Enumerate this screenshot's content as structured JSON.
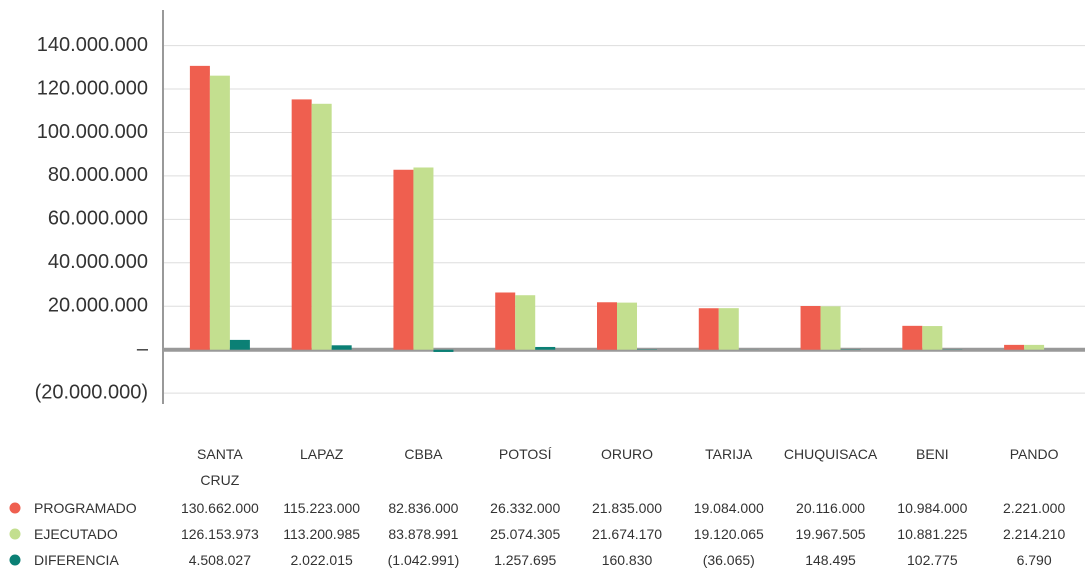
{
  "chart_data": {
    "type": "bar",
    "categories": [
      "SANTA CRUZ",
      "LAPAZ",
      "CBBA",
      "POTOSÍ",
      "ORURO",
      "TARIJA",
      "CHUQUISACA",
      "BENI",
      "PANDO"
    ],
    "series": [
      {
        "name": "PROGRAMADO",
        "color": "#ef5f4f",
        "values": [
          130662000,
          115223000,
          82836000,
          26332000,
          21835000,
          19084000,
          20116000,
          10984000,
          2221000
        ],
        "value_labels": [
          "130.662.000",
          "115.223.000",
          "82.836.000",
          "26.332.000",
          "21.835.000",
          "19.084.000",
          "20.116.000",
          "10.984.000",
          "2.221.000"
        ]
      },
      {
        "name": "EJECUTADO",
        "color": "#c3df8f",
        "values": [
          126153973,
          113200985,
          83878991,
          25074305,
          21674170,
          19120065,
          19967505,
          10881225,
          2214210
        ],
        "value_labels": [
          "126.153.973",
          "113.200.985",
          "83.878.991",
          "25.074.305",
          "21.674.170",
          "19.120.065",
          "19.967.505",
          "10.881.225",
          "2.214.210"
        ]
      },
      {
        "name": "DIFERENCIA",
        "color": "#0b8075",
        "values": [
          4508027,
          2022015,
          -1042991,
          1257695,
          160830,
          -36065,
          148495,
          102775,
          6790
        ],
        "value_labels": [
          "4.508.027",
          "2.022.015",
          "(1.042.991)",
          "1.257.695",
          "160.830",
          "(36.065)",
          "148.495",
          "102.775",
          "6.790"
        ]
      }
    ],
    "ylim": [
      -25000000,
      155000000
    ],
    "yticks": [
      {
        "value": -20000000,
        "label": "(20.000.000)"
      },
      {
        "value": 0,
        "label": "–"
      },
      {
        "value": 20000000,
        "label": "20.000.000"
      },
      {
        "value": 40000000,
        "label": "40.000.000"
      },
      {
        "value": 60000000,
        "label": "60.000.000"
      },
      {
        "value": 80000000,
        "label": "80.000.000"
      },
      {
        "value": 100000000,
        "label": "100.000.000"
      },
      {
        "value": 120000000,
        "label": "120.000.000"
      },
      {
        "value": 140000000,
        "label": "140.000.000"
      }
    ],
    "grid": true
  }
}
